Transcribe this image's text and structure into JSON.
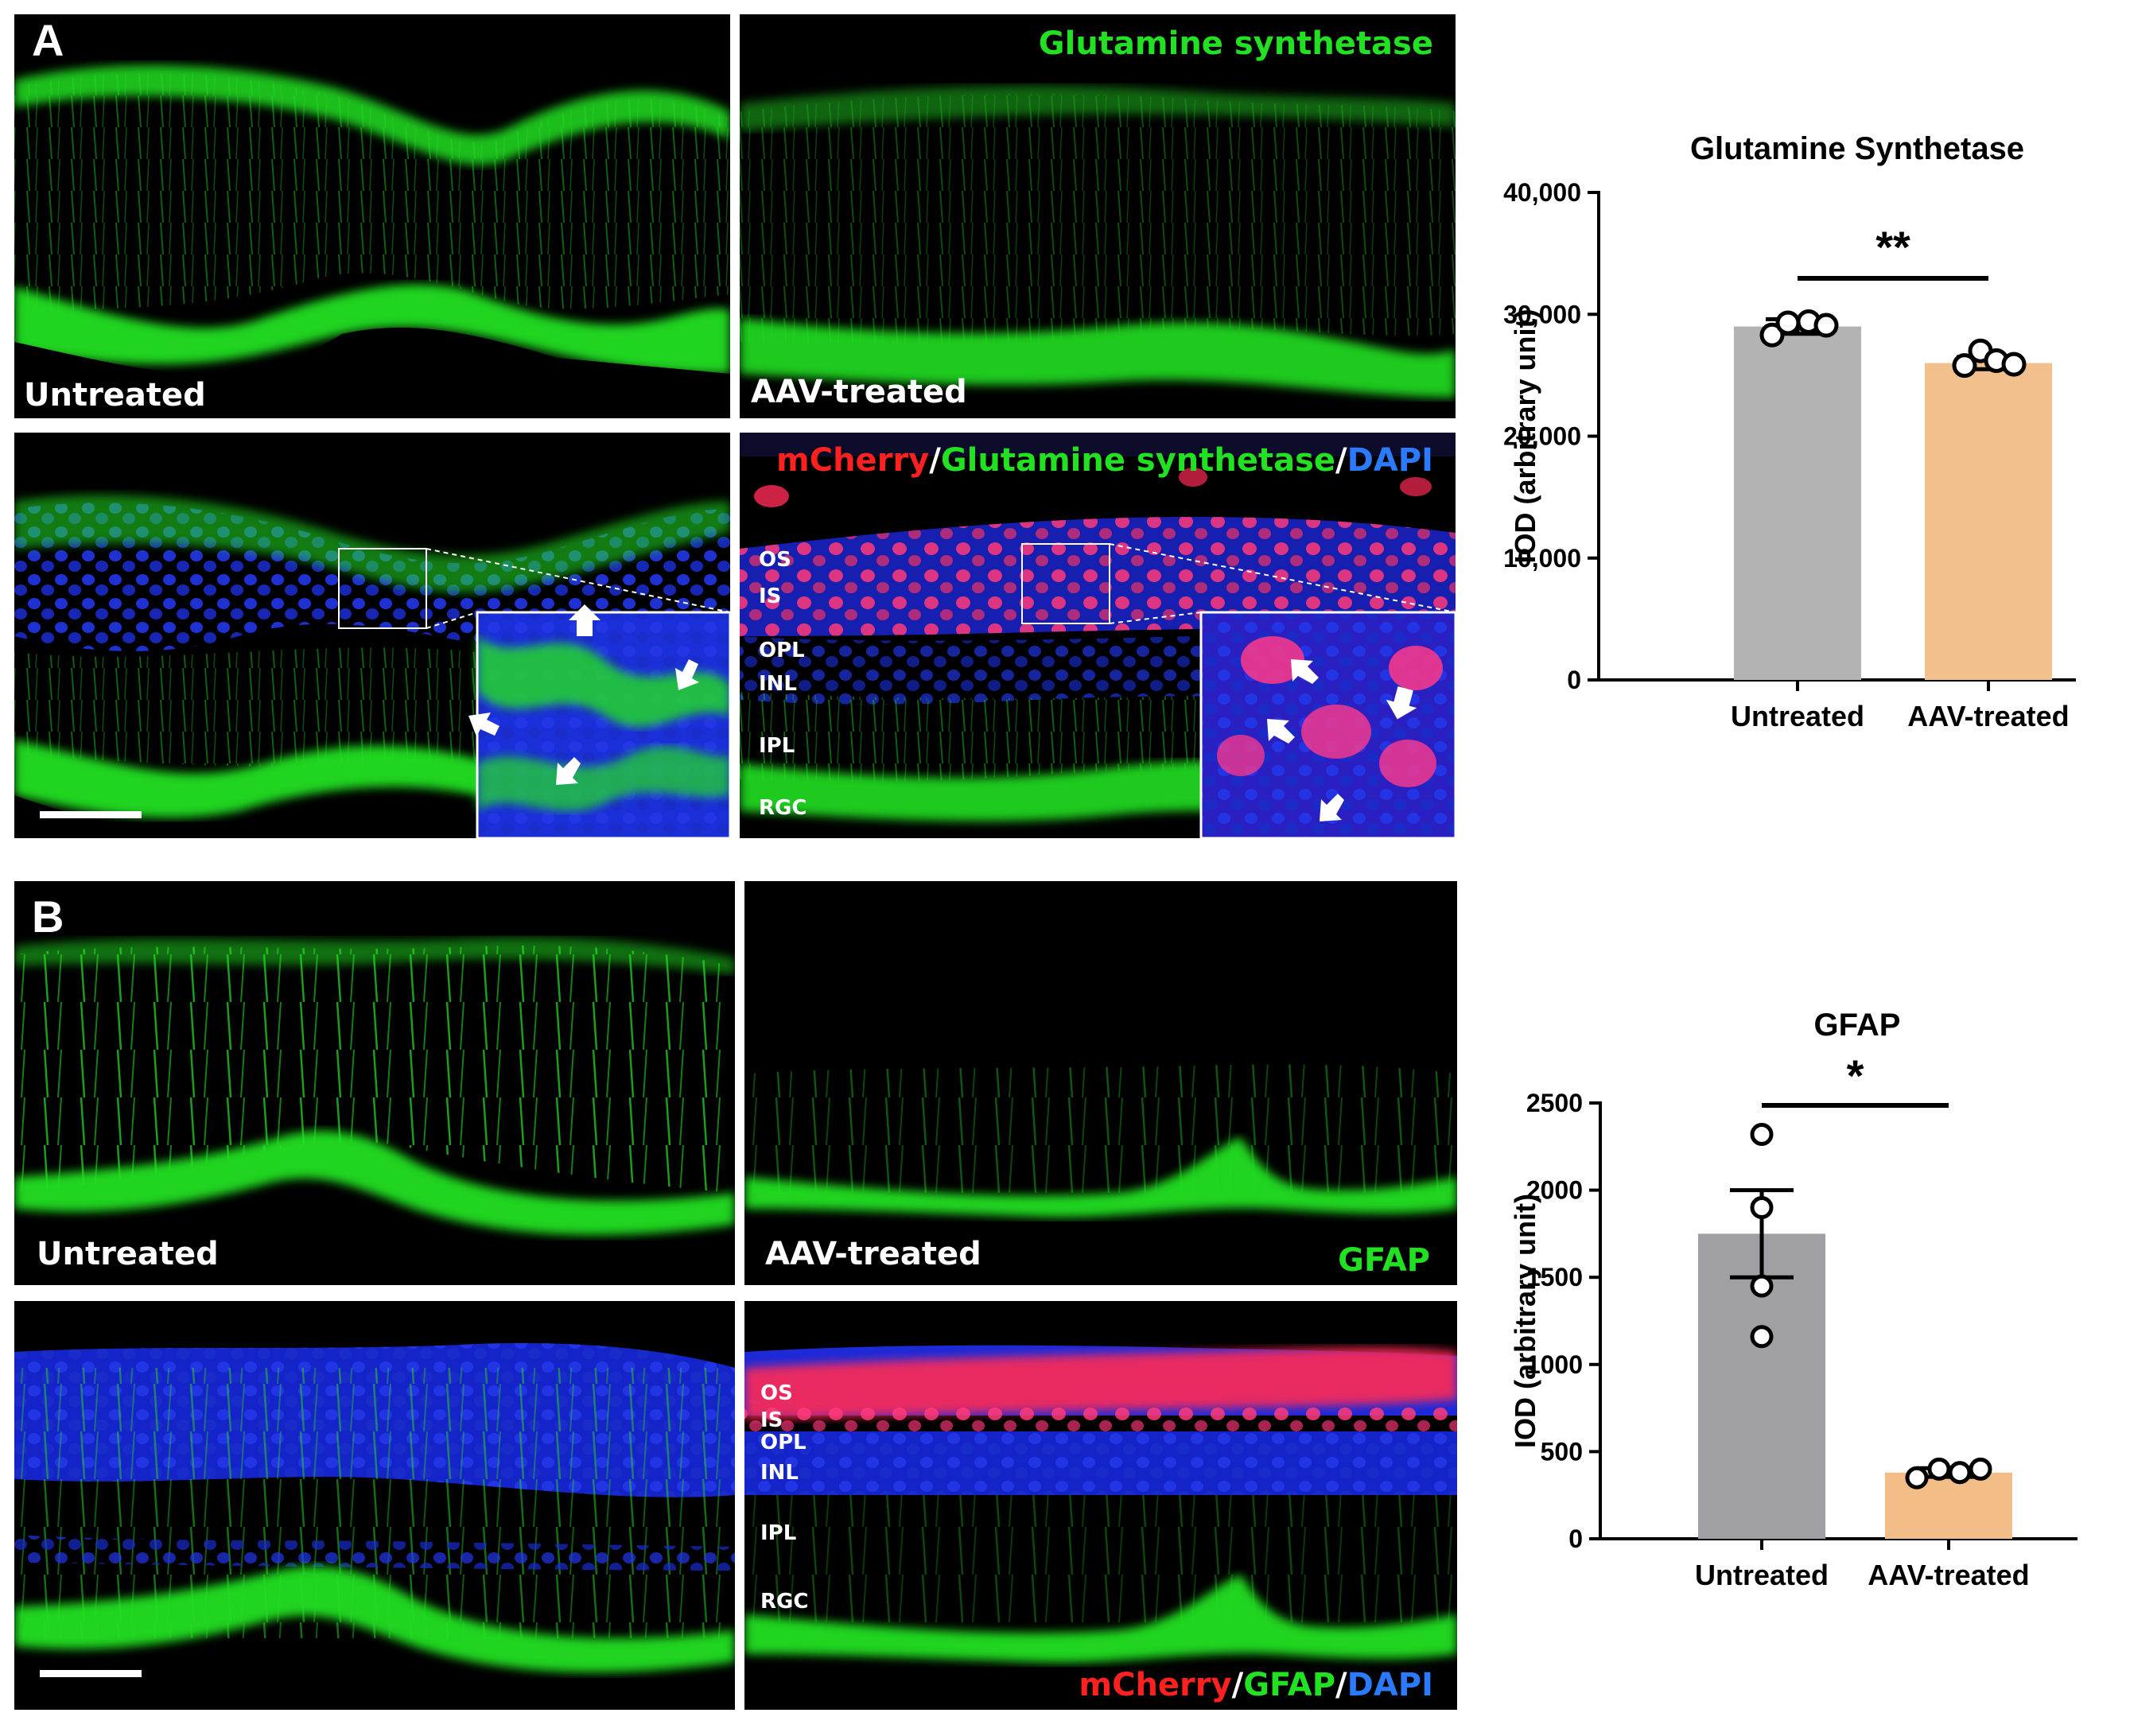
{
  "panels": {
    "A": {
      "letter": "A",
      "top_left_label": "Untreated",
      "top_right_label": "AAV-treated",
      "top_right_stain": "Glutamine synthetase",
      "merge_parts": [
        {
          "text": "mCherry",
          "color": "#ff2020"
        },
        {
          "text": "/",
          "color": "#ffffff"
        },
        {
          "text": "Glutamine synthetase",
          "color": "#22e022"
        },
        {
          "text": "/",
          "color": "#ffffff"
        },
        {
          "text": "DAPI",
          "color": "#2a7bff"
        }
      ],
      "layers": [
        "OS",
        "IS",
        "OPL",
        "INL",
        "IPL",
        "RGC"
      ]
    },
    "B": {
      "letter": "B",
      "top_left_label": "Untreated",
      "top_right_label": "AAV-treated",
      "top_right_stain": "GFAP",
      "merge_parts": [
        {
          "text": "mCherry",
          "color": "#ff2020"
        },
        {
          "text": "/",
          "color": "#ffffff"
        },
        {
          "text": "GFAP",
          "color": "#22e022"
        },
        {
          "text": "/",
          "color": "#ffffff"
        },
        {
          "text": "DAPI",
          "color": "#2a7bff"
        }
      ],
      "layers": [
        "OS",
        "IS",
        "OPL",
        "INL",
        "IPL",
        "RGC"
      ]
    }
  },
  "colors": {
    "stain_green": "#22e022",
    "dapi_blue": "#1a2ee0",
    "mcherry_red": "#ff2a55",
    "bar_untreated_A": "#b3b3b3",
    "bar_treated_A": "#f2c08d",
    "bar_untreated_B": "#a0a0a4",
    "bar_treated_B": "#f2bd87"
  },
  "chart_data": [
    {
      "type": "bar",
      "title": "Glutamine Synthetase",
      "ylabel": "IOD (arbitrary unit)",
      "categories": [
        "Untreated",
        "AAV-treated"
      ],
      "values": [
        29000,
        26000
      ],
      "errors": [
        600,
        500
      ],
      "points": [
        [
          28300,
          29300,
          29400,
          29100
        ],
        [
          25800,
          27000,
          26200,
          25900
        ]
      ],
      "ylim": [
        0,
        40000
      ],
      "yticks": [
        0,
        10000,
        20000,
        30000,
        40000
      ],
      "ytick_labels": [
        "0",
        "10,000",
        "20,000",
        "30,000",
        "40,000"
      ],
      "significance": "**"
    },
    {
      "type": "bar",
      "title": "GFAP",
      "ylabel": "IOD (arbitrary unit)",
      "categories": [
        "Untreated",
        "AAV-treated"
      ],
      "values": [
        1750,
        380
      ],
      "errors": [
        250,
        25
      ],
      "points": [
        [
          2320,
          1900,
          1450,
          1160
        ],
        [
          350,
          400,
          380,
          400
        ]
      ],
      "ylim": [
        0,
        2500
      ],
      "yticks": [
        0,
        500,
        1000,
        1500,
        2000,
        2500
      ],
      "ytick_labels": [
        "0",
        "500",
        "1000",
        "1500",
        "2000",
        "2500"
      ],
      "significance": "*"
    }
  ]
}
